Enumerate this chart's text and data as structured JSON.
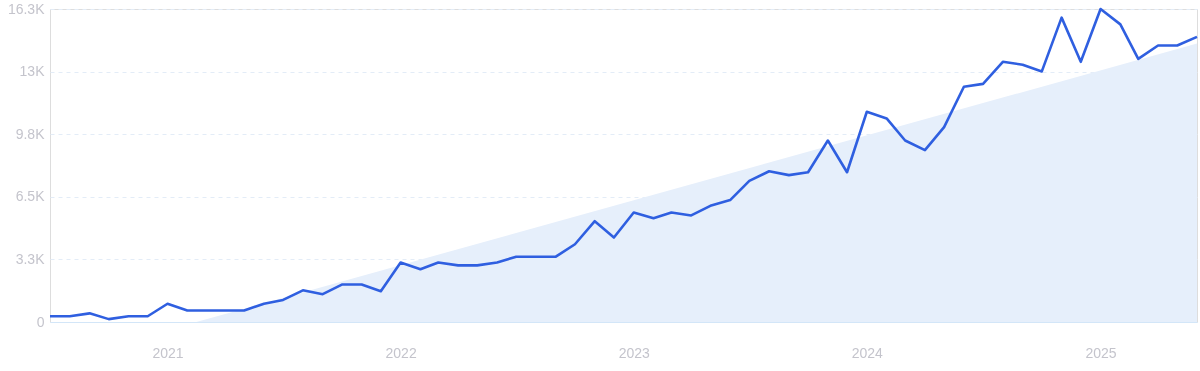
{
  "chart_data": {
    "type": "line",
    "x": [
      "2020-07",
      "2020-08",
      "2020-09",
      "2020-10",
      "2020-11",
      "2020-12",
      "2021-01",
      "2021-02",
      "2021-03",
      "2021-04",
      "2021-05",
      "2021-06",
      "2021-07",
      "2021-08",
      "2021-09",
      "2021-10",
      "2021-11",
      "2021-12",
      "2022-01",
      "2022-02",
      "2022-03",
      "2022-04",
      "2022-05",
      "2022-06",
      "2022-07",
      "2022-08",
      "2022-09",
      "2022-10",
      "2022-11",
      "2022-12",
      "2023-01",
      "2023-02",
      "2023-03",
      "2023-04",
      "2023-05",
      "2023-06",
      "2023-07",
      "2023-08",
      "2023-09",
      "2023-10",
      "2023-11",
      "2023-12",
      "2024-01",
      "2024-02",
      "2024-03",
      "2024-04",
      "2024-05",
      "2024-06",
      "2024-07",
      "2024-08",
      "2024-09",
      "2024-10",
      "2024-11",
      "2024-12",
      "2025-01",
      "2025-02",
      "2025-03",
      "2025-04",
      "2025-05",
      "2025-06"
    ],
    "series": [
      {
        "type": "area",
        "color": "#e6effb",
        "x": [
          "2021-02-15",
          "2025-06"
        ],
        "values": [
          0,
          14500
        ]
      },
      {
        "color": "#2f5fe0",
        "values": [
          300,
          300,
          450,
          150,
          300,
          300,
          950,
          600,
          600,
          600,
          600,
          950,
          1150,
          1650,
          1450,
          1950,
          1950,
          1600,
          3100,
          2750,
          3100,
          2950,
          2950,
          3100,
          3400,
          3400,
          3400,
          4050,
          5250,
          4400,
          5700,
          5400,
          5700,
          5550,
          6050,
          6350,
          7350,
          7850,
          7650,
          7800,
          9450,
          7800,
          10950,
          10600,
          9450,
          8950,
          10150,
          12250,
          12400,
          13550,
          13400,
          13050,
          15850,
          13550,
          16300,
          15500,
          13700,
          14400,
          14400,
          14850
        ]
      }
    ],
    "xlim": [
      "2020-07",
      "2025-06"
    ],
    "xticks": [
      "2021",
      "2022",
      "2023",
      "2024",
      "2025"
    ],
    "ylim": [
      0,
      16300
    ],
    "yticks": [
      0,
      {
        "value": 3260,
        "label": "3.3K"
      },
      {
        "value": 6520,
        "label": "6.5K"
      },
      {
        "value": 9780,
        "label": "9.8K"
      },
      {
        "value": 13040,
        "label": "13K"
      },
      {
        "value": 16300,
        "label": "16.3K"
      }
    ],
    "grid": "y",
    "marker": "none",
    "line_style": "solid"
  }
}
